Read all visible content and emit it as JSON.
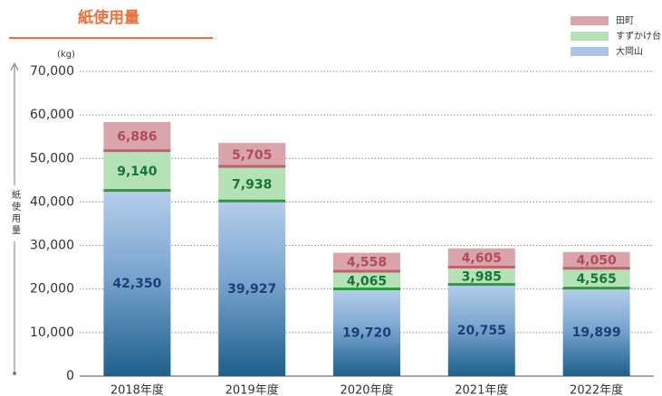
{
  "chart_data": {
    "type": "stacked_bar",
    "title": "紙使用量",
    "unit_label": "(kg)",
    "y_axis_label": "紙使用量",
    "categories": [
      "2018年度",
      "2019年度",
      "2020年度",
      "2021年度",
      "2022年度"
    ],
    "series": [
      {
        "name": "田町",
        "color": "#d9a5ab",
        "accent": "#c0606e",
        "label_color": "#b04c5c",
        "values": [
          6886,
          5705,
          4558,
          4605,
          4050
        ],
        "value_labels": [
          "6,886",
          "5,705",
          "4,558",
          "4,605",
          "4,050"
        ]
      },
      {
        "name": "すずかけ台",
        "color": "#b5e2b5",
        "accent": "#2a9a3e",
        "label_color": "#16753a",
        "values": [
          9140,
          7938,
          4065,
          3985,
          4565
        ],
        "value_labels": [
          "9,140",
          "7,938",
          "4,065",
          "3,985",
          "4,565"
        ]
      },
      {
        "name": "大岡山",
        "color": "#a9c6e6",
        "accent": "#1d5f8c",
        "label_color": "#1b3f7c",
        "values": [
          42350,
          39927,
          19720,
          20755,
          19899
        ],
        "value_labels": [
          "42,350",
          "39,927",
          "19,720",
          "20,755",
          "19,899"
        ]
      }
    ],
    "ylim": [
      0,
      70000
    ],
    "yticks": [
      0,
      {
        "value": 10000,
        "label": "10,000"
      },
      {
        "value": 20000,
        "label": "20,000"
      },
      {
        "value": 30000,
        "label": "30,000"
      },
      {
        "value": 40000,
        "label": "40,000"
      },
      {
        "value": 50000,
        "label": "50,000"
      },
      {
        "value": 60000,
        "label": "60,000"
      },
      {
        "value": 70000,
        "label": "70,000"
      }
    ],
    "grid": true,
    "legend": "top-right"
  }
}
